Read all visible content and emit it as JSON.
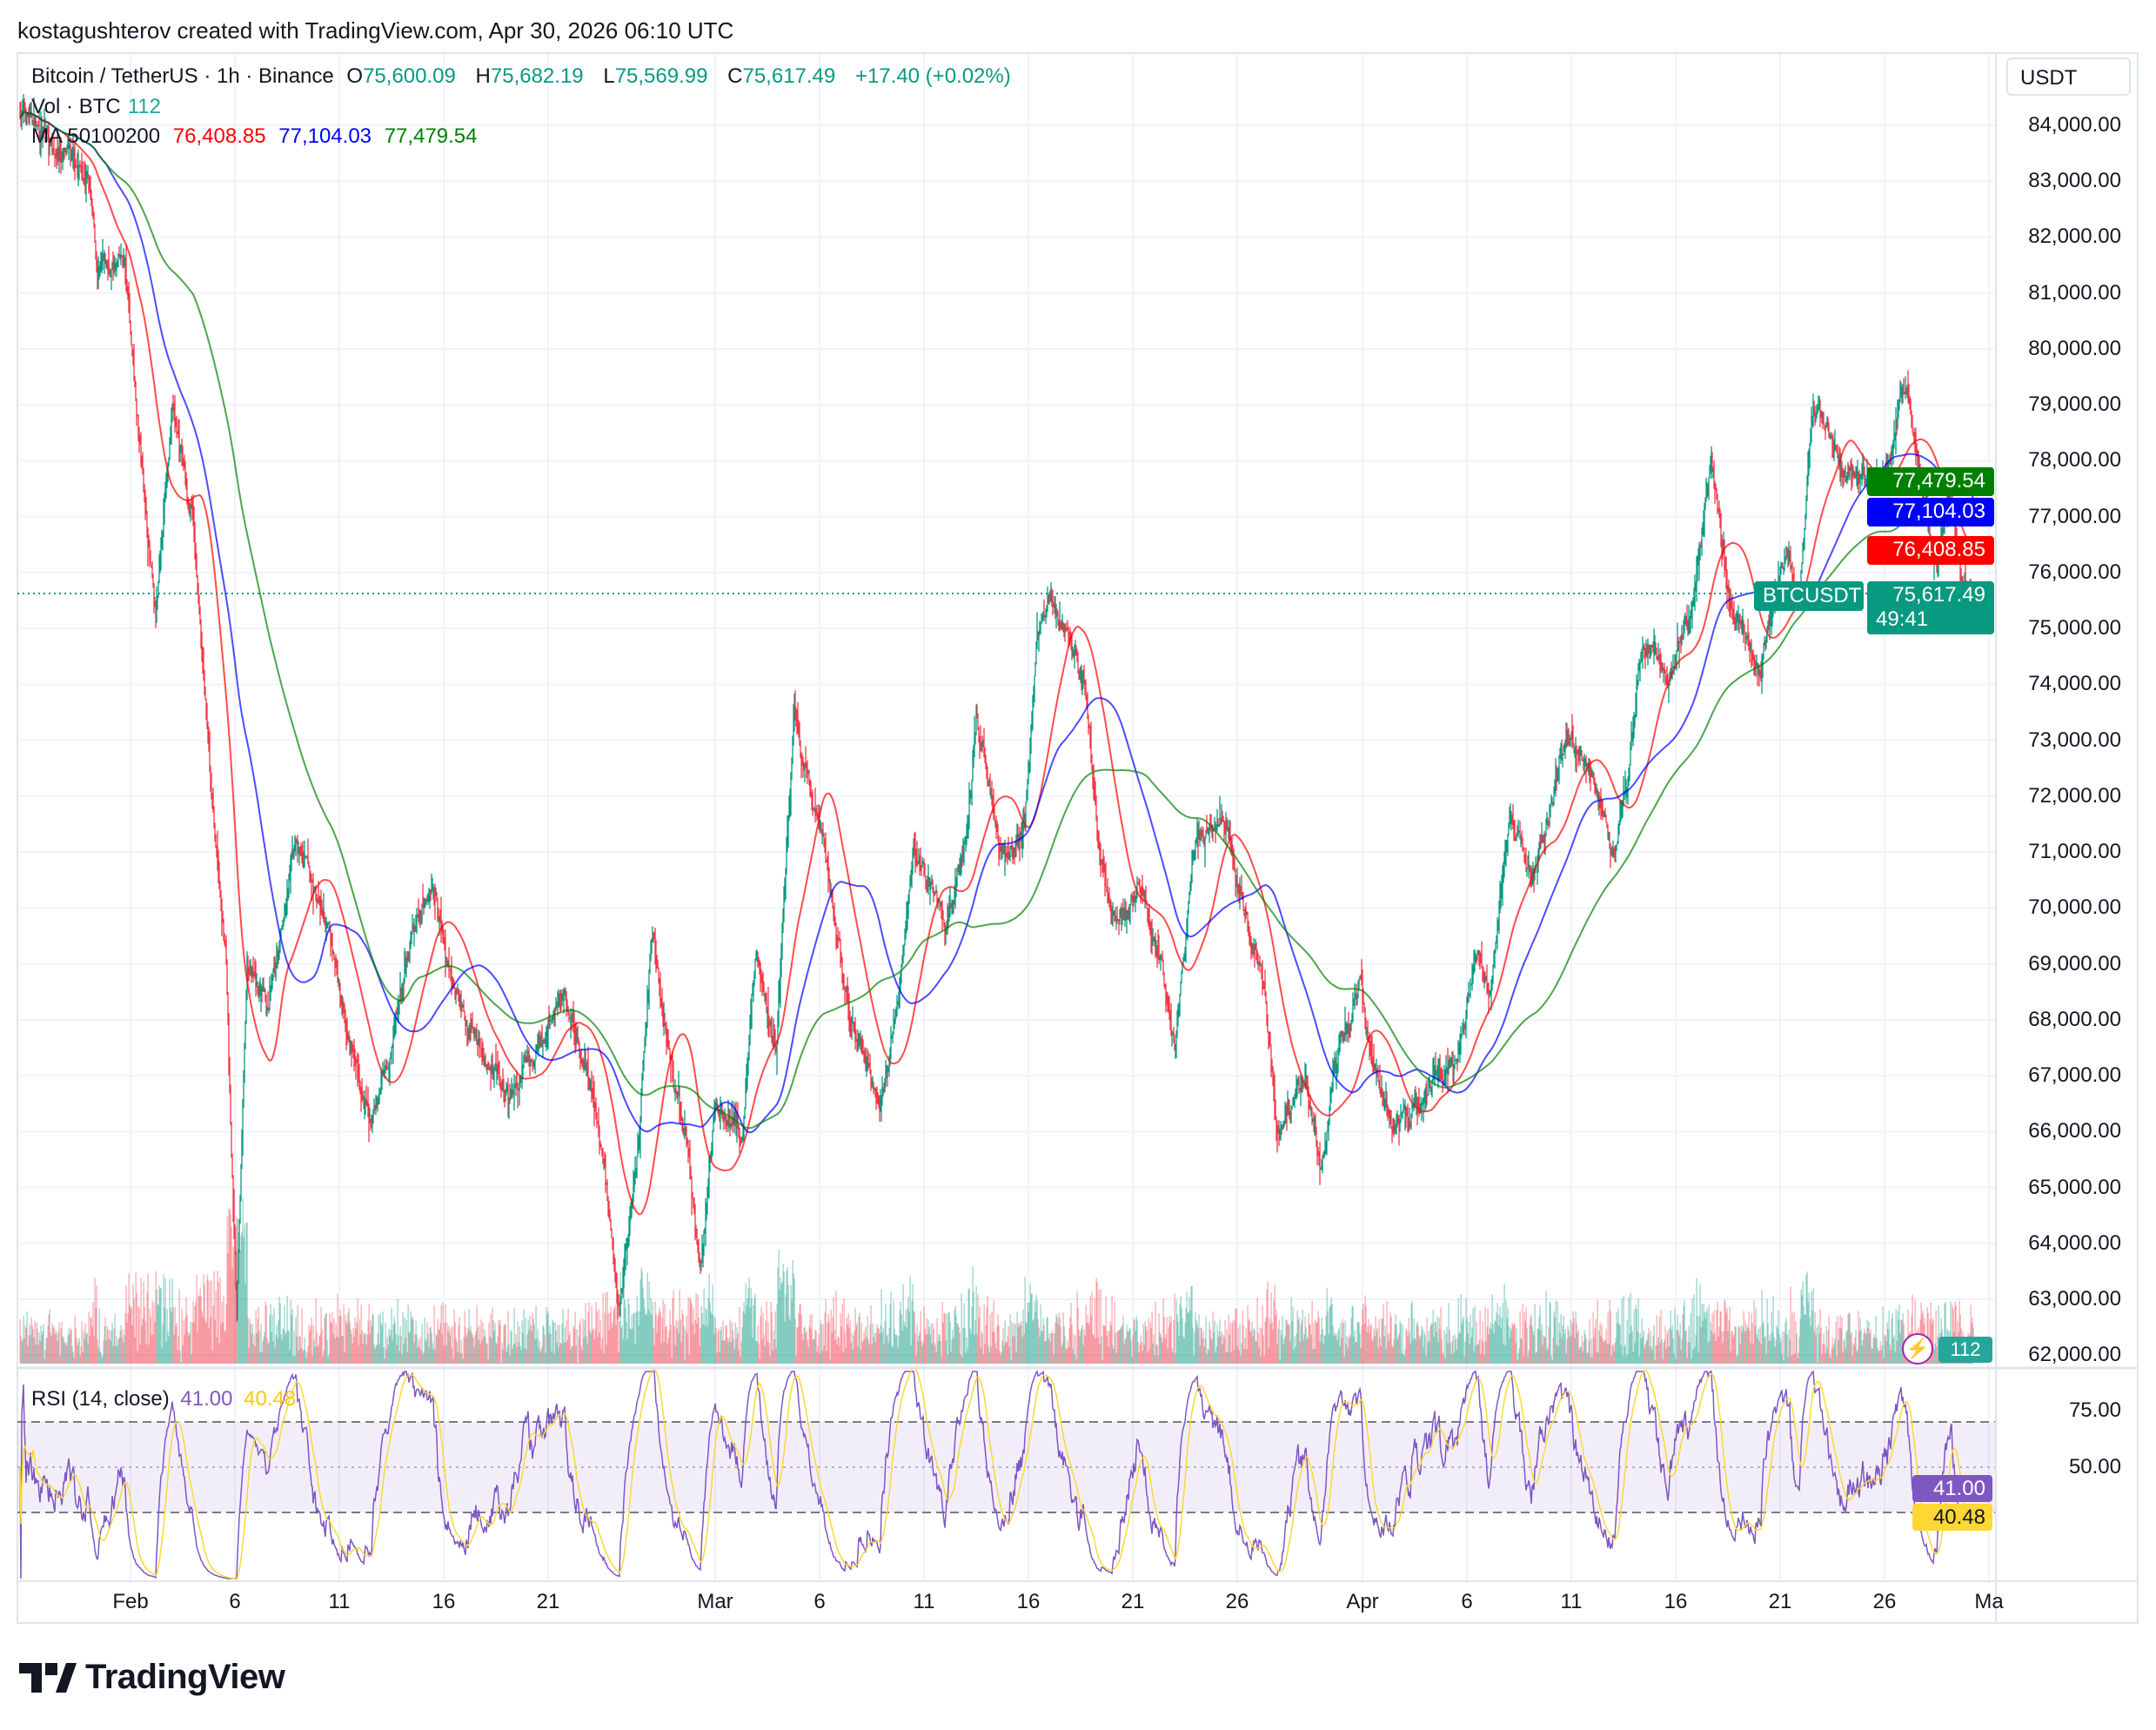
{
  "credit": "kostagushterov created with TradingView.com, Apr 30, 2026 06:10 UTC",
  "legend": {
    "symbol": "Bitcoin / TetherUS · 1h · Binance",
    "o_label": "O",
    "o": "75,600.09",
    "h_label": "H",
    "h": "75,682.19",
    "l_label": "L",
    "l": "75,569.99",
    "c_label": "C",
    "c": "75,617.49",
    "change": "+17.40 (+0.02%)",
    "vol_label": "Vol · BTC",
    "vol": "112",
    "ma_label": "MA 50100200",
    "ma50": "76,408.85",
    "ma100": "77,104.03",
    "ma200": "77,479.54"
  },
  "axis": {
    "currency": "USDT",
    "price_ticks": [
      "84,000.00",
      "83,000.00",
      "82,000.00",
      "81,000.00",
      "80,000.00",
      "79,000.00",
      "78,000.00",
      "77,000.00",
      "76,000.00",
      "75,000.00",
      "74,000.00",
      "73,000.00",
      "72,000.00",
      "71,000.00",
      "70,000.00",
      "69,000.00",
      "68,000.00",
      "67,000.00",
      "66,000.00",
      "65,000.00",
      "64,000.00",
      "63,000.00",
      "62,000.00"
    ],
    "date_ticks": [
      {
        "label": "Feb",
        "date": "02-01"
      },
      {
        "label": "6",
        "date": "02-06"
      },
      {
        "label": "11",
        "date": "02-11"
      },
      {
        "label": "16",
        "date": "02-16"
      },
      {
        "label": "21",
        "date": "02-21"
      },
      {
        "label": "Mar",
        "date": "03-01"
      },
      {
        "label": "6",
        "date": "03-06"
      },
      {
        "label": "11",
        "date": "03-11"
      },
      {
        "label": "16",
        "date": "03-16"
      },
      {
        "label": "21",
        "date": "03-21"
      },
      {
        "label": "26",
        "date": "03-26"
      },
      {
        "label": "Apr",
        "date": "04-01"
      },
      {
        "label": "6",
        "date": "04-06"
      },
      {
        "label": "11",
        "date": "04-11"
      },
      {
        "label": "16",
        "date": "04-16"
      },
      {
        "label": "21",
        "date": "04-21"
      },
      {
        "label": "26",
        "date": "04-26"
      },
      {
        "label": "Ma",
        "date": "05-01"
      }
    ]
  },
  "tags": {
    "ma200": "77,479.54",
    "ma100": "77,104.03",
    "ma50": "76,408.85",
    "symbol": "BTCUSDT",
    "last": "75,617.49",
    "countdown": "49:41",
    "volume": "112",
    "rsi": "41.00",
    "rsi_ma": "40.48"
  },
  "rsi": {
    "label": "RSI (14, close)",
    "value": "41.00",
    "ma": "40.48",
    "levels": [
      70,
      50,
      30
    ],
    "tick_75": "75.00",
    "tick_50": "50.00"
  },
  "colors": {
    "up": "#089981",
    "down": "#f23645",
    "ma50": "#ff0000",
    "ma100": "#0000ff",
    "ma200": "#008000",
    "rsi": "#7e57c2",
    "rsi_ma": "#fdd835"
  },
  "logo": "TradingView",
  "chart_data": {
    "type": "candlestick",
    "interval": "1h",
    "symbol": "BTCUSDT",
    "ylim": [
      62000,
      84500
    ],
    "grid": true,
    "indicators": [
      "MA 50",
      "MA 100",
      "MA 200",
      "Volume",
      "RSI 14"
    ],
    "price_path": [
      [
        "01-26 17",
        84300
      ],
      [
        "01-30 00",
        83000
      ],
      [
        "01-30 10",
        81300
      ],
      [
        "01-31 17",
        81500
      ],
      [
        "02-01 08",
        78900
      ],
      [
        "02-02 05",
        75000
      ],
      [
        "02-03 00",
        79000
      ],
      [
        "02-04 00",
        76900
      ],
      [
        "02-04 14",
        73500
      ],
      [
        "02-05 14",
        69000
      ],
      [
        "02-06 02",
        62600
      ],
      [
        "02-06 14",
        69000
      ],
      [
        "02-07 14",
        68000
      ],
      [
        "02-08 22",
        71200
      ],
      [
        "02-10 12",
        69500
      ],
      [
        "02-12 12",
        66000
      ],
      [
        "02-14 12",
        69500
      ],
      [
        "02-15 12",
        70500
      ],
      [
        "02-16 12",
        68500
      ],
      [
        "02-19 02",
        66500
      ],
      [
        "02-20 17",
        67500
      ],
      [
        "02-21 17",
        68500
      ],
      [
        "02-23 00",
        67000
      ],
      [
        "02-23 17",
        65300
      ],
      [
        "02-24 10",
        63000
      ],
      [
        "02-25 07",
        65700
      ],
      [
        "02-26 00",
        69500
      ],
      [
        "02-27 00",
        66800
      ],
      [
        "02-27 14",
        66000
      ],
      [
        "02-28 07",
        63400
      ],
      [
        "03-01 00",
        66500
      ],
      [
        "03-02 07",
        66000
      ],
      [
        "03-02 22",
        69200
      ],
      [
        "03-03 22",
        67500
      ],
      [
        "03-04 19",
        73500
      ],
      [
        "03-05 14",
        72000
      ],
      [
        "03-06 05",
        71200
      ],
      [
        "03-07 05",
        68500
      ],
      [
        "03-08 22",
        66500
      ],
      [
        "03-09 19",
        68500
      ],
      [
        "03-10 12",
        71200
      ],
      [
        "03-12 02",
        69700
      ],
      [
        "03-13 02",
        71400
      ],
      [
        "03-13 12",
        73400
      ],
      [
        "03-14 19",
        71000
      ],
      [
        "03-15 19",
        71400
      ],
      [
        "03-16 10",
        74700
      ],
      [
        "03-17 02",
        75700
      ],
      [
        "03-18 17",
        74000
      ],
      [
        "03-19 10",
        71000
      ],
      [
        "03-20 00",
        69500
      ],
      [
        "03-21 10",
        70500
      ],
      [
        "03-22 07",
        69000
      ],
      [
        "03-23 00",
        67500
      ],
      [
        "03-24 00",
        71200
      ],
      [
        "03-25 12",
        71700
      ],
      [
        "03-26 07",
        70000
      ],
      [
        "03-27 07",
        68500
      ],
      [
        "03-27 22",
        66000
      ],
      [
        "03-29 07",
        66800
      ],
      [
        "03-30 00",
        65300
      ],
      [
        "03-30 22",
        67500
      ],
      [
        "03-31 22",
        68500
      ],
      [
        "04-01 12",
        67300
      ],
      [
        "04-02 12",
        66000
      ],
      [
        "04-03 12",
        66500
      ],
      [
        "04-05 12",
        67300
      ],
      [
        "04-06 12",
        69200
      ],
      [
        "04-07 02",
        68500
      ],
      [
        "04-08 02",
        71700
      ],
      [
        "04-09 02",
        70500
      ],
      [
        "04-10 19",
        73000
      ],
      [
        "04-12 02",
        72500
      ],
      [
        "04-13 02",
        70800
      ],
      [
        "04-13 17",
        72500
      ],
      [
        "04-14 10",
        74700
      ],
      [
        "04-15 17",
        74200
      ],
      [
        "04-16 17",
        75200
      ],
      [
        "04-17 17",
        77900
      ],
      [
        "04-18 14",
        75700
      ],
      [
        "04-20 00",
        74200
      ],
      [
        "04-21 07",
        76400
      ],
      [
        "04-21 22",
        75500
      ],
      [
        "04-22 14",
        79100
      ],
      [
        "04-23 22",
        77900
      ],
      [
        "04-25 05",
        77600
      ],
      [
        "04-26 05",
        77900
      ],
      [
        "04-27 00",
        79300
      ],
      [
        "04-27 22",
        77300
      ],
      [
        "04-28 12",
        76100
      ],
      [
        "04-29 05",
        77500
      ],
      [
        "04-29 19",
        75800
      ],
      [
        "04-30 06",
        75617.49
      ]
    ]
  }
}
